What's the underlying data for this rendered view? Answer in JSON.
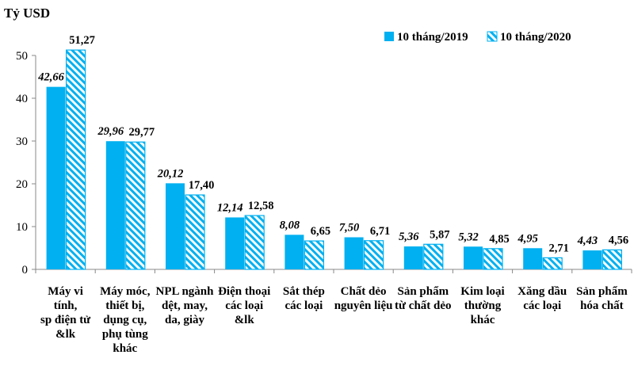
{
  "chart_data": {
    "type": "bar",
    "ylabel": "Tỷ USD",
    "ylim": [
      0,
      50
    ],
    "yticks": [
      "0",
      "10",
      "20",
      "30",
      "40",
      "50"
    ],
    "grid": false,
    "legend_position": "top-right",
    "categories": [
      [
        "Máy vi",
        "tính,",
        "sp điện tử",
        "&lk"
      ],
      [
        "Máy móc,",
        "thiết bị,",
        "dụng cụ,",
        "phụ tùng",
        "khác"
      ],
      [
        "NPL ngành",
        "dệt, may,",
        "da, giày"
      ],
      [
        "Điện thoại",
        "các loại",
        "&lk"
      ],
      [
        "Sắt thép",
        "các loại"
      ],
      [
        "Chất dẻo",
        "nguyên liệu"
      ],
      [
        "Sản phẩm",
        "từ chất dẻo"
      ],
      [
        "Kim loại",
        "thường",
        "khác"
      ],
      [
        "Xăng dầu",
        "các loại"
      ],
      [
        "Sản phẩm",
        "hóa chất"
      ]
    ],
    "series": [
      {
        "name": "10 tháng/2019",
        "color": "#00B0F0",
        "pattern": "solid",
        "values": [
          42.66,
          29.96,
          20.12,
          12.14,
          8.08,
          7.5,
          5.36,
          5.32,
          4.95,
          4.43
        ],
        "labels": [
          "42,66",
          "29,96",
          "20,12",
          "12,14",
          "8,08",
          "7,50",
          "5,36",
          "5,32",
          "4,95",
          "4,43"
        ]
      },
      {
        "name": "10 tháng/2020",
        "color": "#00B0F0",
        "pattern": "diagonal-hatch",
        "values": [
          51.27,
          29.77,
          17.4,
          12.58,
          6.65,
          6.71,
          5.87,
          4.85,
          2.71,
          4.56
        ],
        "labels": [
          "51,27",
          "29,77",
          "17,40",
          "12,58",
          "6,65",
          "6,71",
          "5,87",
          "4,85",
          "2,71",
          "4,56"
        ]
      }
    ]
  }
}
